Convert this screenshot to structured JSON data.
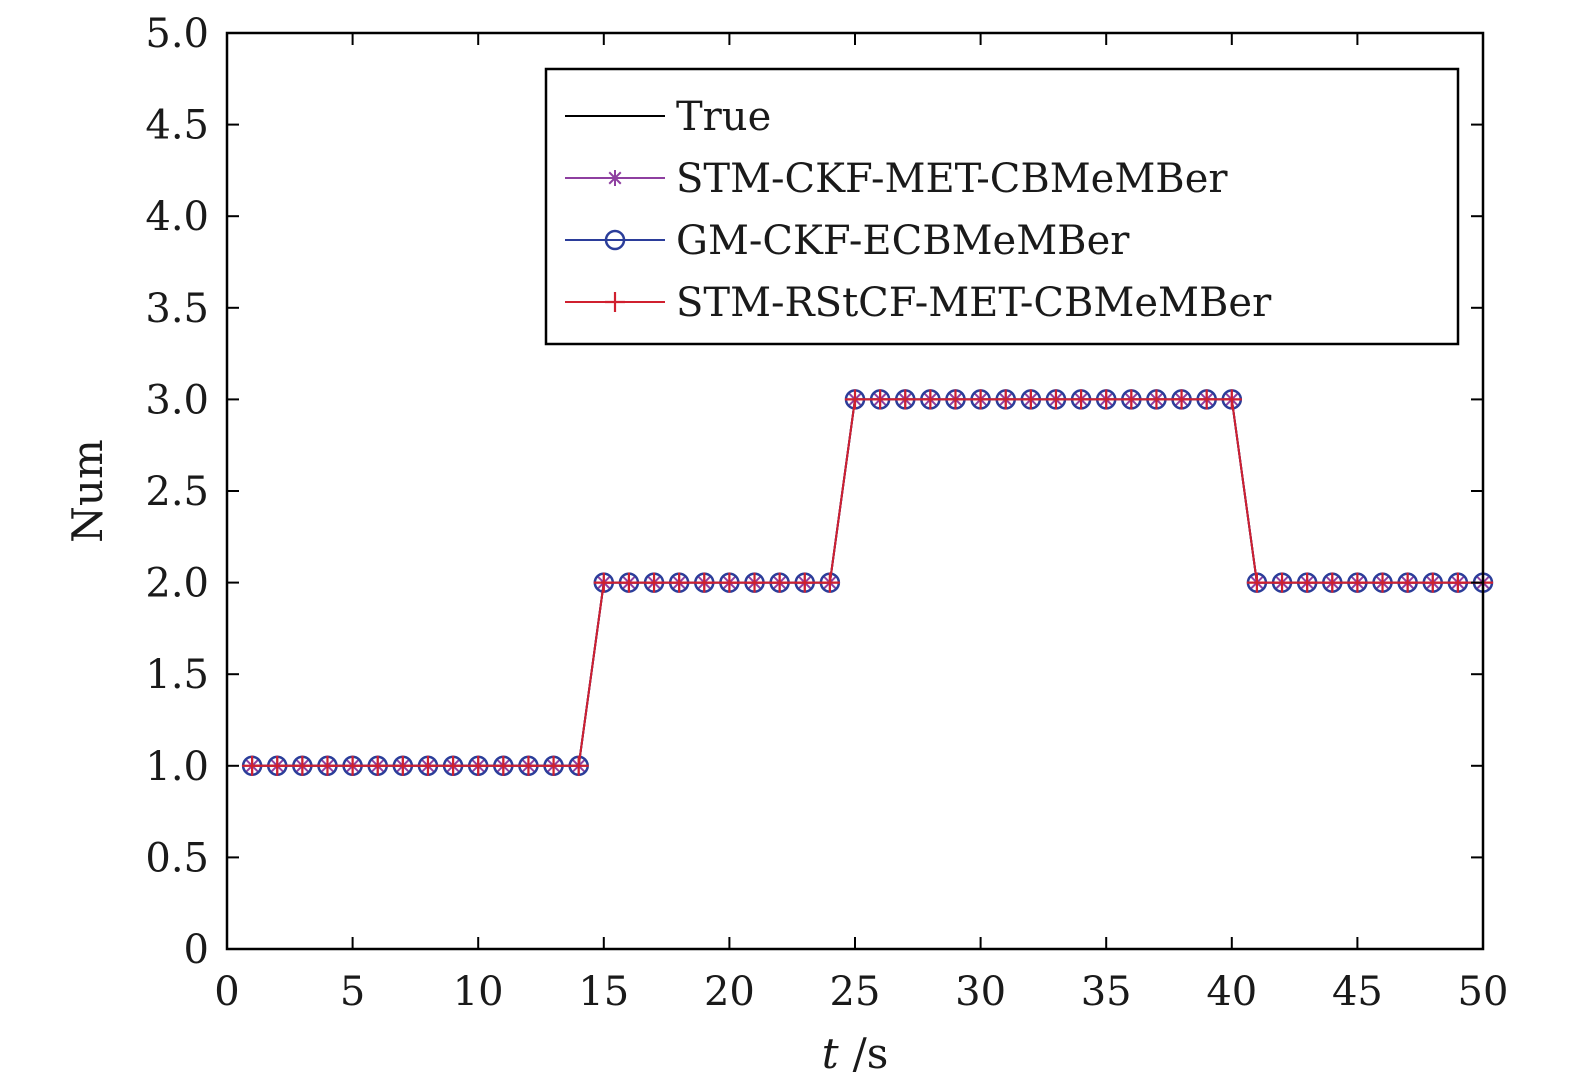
{
  "chart_data": {
    "type": "line",
    "xlabel_var": "t",
    "xlabel_unit": "/s",
    "ylabel": "Num",
    "xlim": [
      0,
      50
    ],
    "ylim": [
      0,
      5
    ],
    "xticks": [
      "0",
      "5",
      "10",
      "15",
      "20",
      "25",
      "30",
      "35",
      "40",
      "45",
      "50"
    ],
    "yticks": [
      "0",
      "0.5",
      "1.0",
      "1.5",
      "2.0",
      "2.5",
      "3.0",
      "3.5",
      "4.0",
      "4.5",
      "5.0"
    ],
    "grid": false,
    "legend_position": "top-right",
    "x": [
      1,
      2,
      3,
      4,
      5,
      6,
      7,
      8,
      9,
      10,
      11,
      12,
      13,
      14,
      15,
      16,
      17,
      18,
      19,
      20,
      21,
      22,
      23,
      24,
      25,
      26,
      27,
      28,
      29,
      30,
      31,
      32,
      33,
      34,
      35,
      36,
      37,
      38,
      39,
      40,
      41,
      42,
      43,
      44,
      45,
      46,
      47,
      48,
      49,
      50
    ],
    "series": [
      {
        "name": "True",
        "color": "#000000",
        "marker": "none",
        "values": [
          1,
          1,
          1,
          1,
          1,
          1,
          1,
          1,
          1,
          1,
          1,
          1,
          1,
          1,
          2,
          2,
          2,
          2,
          2,
          2,
          2,
          2,
          2,
          2,
          3,
          3,
          3,
          3,
          3,
          3,
          3,
          3,
          3,
          3,
          3,
          3,
          3,
          3,
          3,
          3,
          2,
          2,
          2,
          2,
          2,
          2,
          2,
          2,
          2,
          2
        ]
      },
      {
        "name": "STM-CKF-MET-CBMeMBer",
        "color": "#8e3fa0",
        "marker": "star",
        "values": [
          1,
          1,
          1,
          1,
          1,
          1,
          1,
          1,
          1,
          1,
          1,
          1,
          1,
          1,
          2,
          2,
          2,
          2,
          2,
          2,
          2,
          2,
          2,
          2,
          3,
          3,
          3,
          3,
          3,
          3,
          3,
          3,
          3,
          3,
          3,
          3,
          3,
          3,
          3,
          3,
          2,
          2,
          2,
          2,
          2,
          2,
          2,
          2,
          2,
          2
        ]
      },
      {
        "name": "GM-CKF-ECBMeMBer",
        "color": "#2b3d9a",
        "marker": "circle",
        "values": [
          1,
          1,
          1,
          1,
          1,
          1,
          1,
          1,
          1,
          1,
          1,
          1,
          1,
          1,
          2,
          2,
          2,
          2,
          2,
          2,
          2,
          2,
          2,
          2,
          3,
          3,
          3,
          3,
          3,
          3,
          3,
          3,
          3,
          3,
          3,
          3,
          3,
          3,
          3,
          3,
          2,
          2,
          2,
          2,
          2,
          2,
          2,
          2,
          2,
          2
        ]
      },
      {
        "name": "STM-RStCF-MET-CBMeMBer",
        "color": "#d0202f",
        "marker": "plus",
        "values": [
          1,
          1,
          1,
          1,
          1,
          1,
          1,
          1,
          1,
          1,
          1,
          1,
          1,
          1,
          2,
          2,
          2,
          2,
          2,
          2,
          2,
          2,
          2,
          2,
          3,
          3,
          3,
          3,
          3,
          3,
          3,
          3,
          3,
          3,
          3,
          3,
          3,
          3,
          3,
          3,
          2,
          2,
          2,
          2,
          2,
          2,
          2,
          2,
          2,
          2
        ]
      }
    ]
  }
}
